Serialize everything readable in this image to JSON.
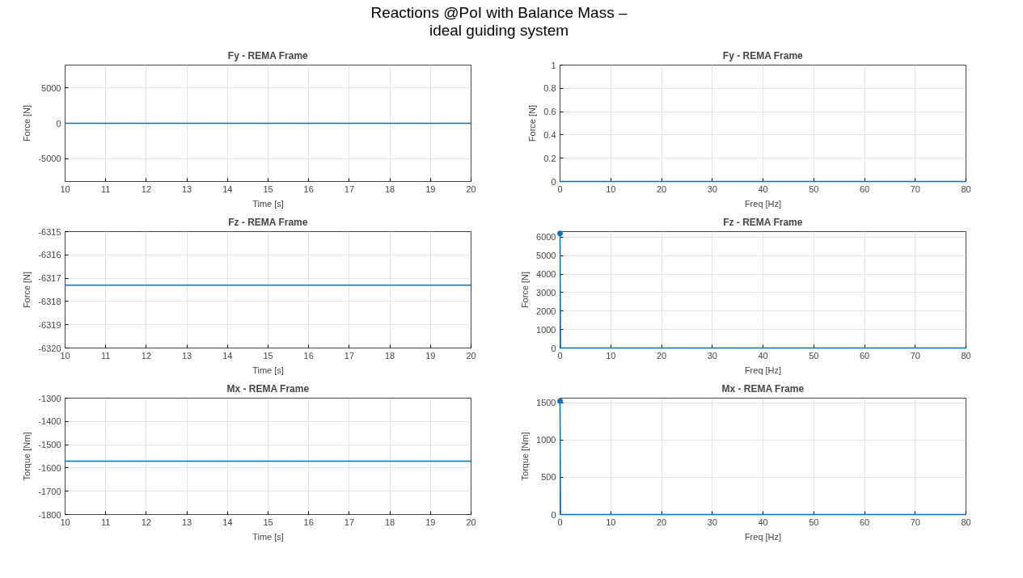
{
  "chart_data": [
    {
      "type": "line",
      "title": "Fy - REMA Frame",
      "xlabel": "Time [s]",
      "ylabel": "Force [N]",
      "annotations": [
        "Reactions @PoI with Balance Mass –\nideal guiding system"
      ],
      "x": [
        10,
        20
      ],
      "series": [
        {
          "color": "#0072bd",
          "values": [
            0,
            0
          ]
        }
      ],
      "xlim": [
        10,
        20
      ],
      "xticks": [
        10,
        11,
        12,
        13,
        14,
        15,
        16,
        17,
        18,
        19,
        20
      ],
      "ylim": [
        -8200,
        8200
      ],
      "yticks": [
        -5000,
        0,
        5000
      ],
      "grid": true
    },
    {
      "type": "line",
      "title": "Fy - REMA Frame",
      "xlabel": "Freq [Hz]",
      "ylabel": "Force [N]",
      "x": [
        0,
        80
      ],
      "series": [
        {
          "color": "#0072bd",
          "values": [
            0,
            0
          ]
        }
      ],
      "xlim": [
        0,
        80
      ],
      "xticks": [
        0,
        10,
        20,
        30,
        40,
        50,
        60,
        70,
        80
      ],
      "ylim": [
        0,
        1
      ],
      "yticks": [
        0,
        0.2,
        0.4,
        0.6,
        0.8,
        1
      ],
      "grid": true
    },
    {
      "type": "line",
      "title": "Fz - REMA Frame",
      "xlabel": "Time [s]",
      "ylabel": "Force [N]",
      "x": [
        10,
        20
      ],
      "series": [
        {
          "color": "#0072bd",
          "values": [
            -6317.3,
            -6317.3
          ]
        }
      ],
      "xlim": [
        10,
        20
      ],
      "xticks": [
        10,
        11,
        12,
        13,
        14,
        15,
        16,
        17,
        18,
        19,
        20
      ],
      "ylim": [
        -6320,
        -6315
      ],
      "yticks": [
        -6320,
        -6319,
        -6318,
        -6317,
        -6316,
        -6315
      ],
      "grid": true
    },
    {
      "type": "line",
      "title": "Fz - REMA Frame",
      "xlabel": "Freq [Hz]",
      "ylabel": "Force [N]",
      "x": [
        0,
        0.1,
        80
      ],
      "series": [
        {
          "color": "#0072bd",
          "values": [
            6200,
            0,
            0
          ]
        },
        {
          "type": "scatter",
          "color": "#0072bd",
          "x": [
            0
          ],
          "values": [
            6200
          ]
        }
      ],
      "xlim": [
        0,
        80
      ],
      "xticks": [
        0,
        10,
        20,
        30,
        40,
        50,
        60,
        70,
        80
      ],
      "ylim": [
        0,
        6300
      ],
      "yticks": [
        0,
        1000,
        2000,
        3000,
        4000,
        5000,
        6000
      ],
      "grid": true
    },
    {
      "type": "line",
      "title": "Mx - REMA Frame",
      "xlabel": "Time [s]",
      "ylabel": "Torque [Nm]",
      "x": [
        10,
        20
      ],
      "series": [
        {
          "color": "#0072bd",
          "values": [
            -1571,
            -1571
          ]
        }
      ],
      "xlim": [
        10,
        20
      ],
      "xticks": [
        10,
        11,
        12,
        13,
        14,
        15,
        16,
        17,
        18,
        19,
        20
      ],
      "ylim": [
        -1800,
        -1300
      ],
      "yticks": [
        -1800,
        -1700,
        -1600,
        -1500,
        -1400,
        -1300
      ],
      "grid": true
    },
    {
      "type": "line",
      "title": "Mx - REMA Frame",
      "xlabel": "Freq [Hz]",
      "ylabel": "Torque [Nm]",
      "x": [
        0,
        0.1,
        80
      ],
      "series": [
        {
          "color": "#0072bd",
          "values": [
            1520,
            0,
            0
          ]
        },
        {
          "type": "scatter",
          "color": "#0072bd",
          "x": [
            0
          ],
          "values": [
            1520
          ]
        }
      ],
      "xlim": [
        0,
        80
      ],
      "xticks": [
        0,
        10,
        20,
        30,
        40,
        50,
        60,
        70,
        80
      ],
      "ylim": [
        0,
        1560
      ],
      "yticks": [
        0,
        500,
        1000,
        1500
      ],
      "grid": true
    }
  ]
}
